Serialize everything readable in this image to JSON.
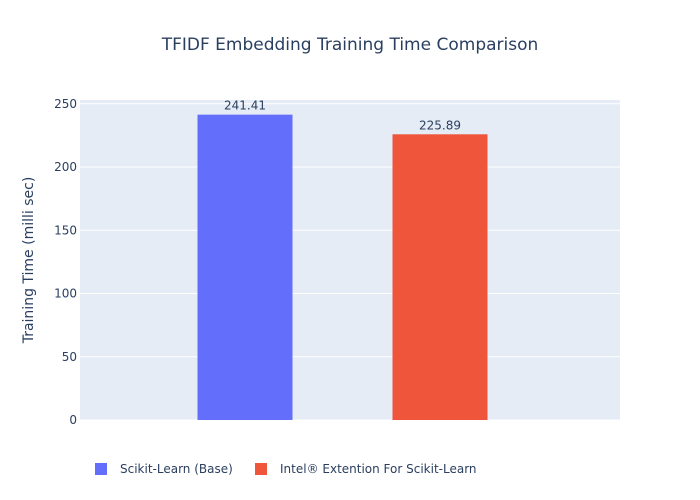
{
  "chart_data": {
    "type": "bar",
    "title": "TFIDF Embedding Training Time Comparison",
    "xlabel": "",
    "ylabel": "Training Time (milli sec)",
    "ylim": [
      0,
      253
    ],
    "yticks": [
      0,
      50,
      100,
      150,
      200,
      250
    ],
    "grid": true,
    "legend_position": "bottom",
    "background_color": "#e5ecf6",
    "series": [
      {
        "name": "Scikit-Learn (Base)",
        "values": [
          241.41
        ],
        "value_labels": [
          "241.41"
        ],
        "color": "#636efa"
      },
      {
        "name": "Intel® Extention For Scikit-Learn",
        "values": [
          225.89
        ],
        "value_labels": [
          "225.89"
        ],
        "color": "#ef553b"
      }
    ]
  }
}
